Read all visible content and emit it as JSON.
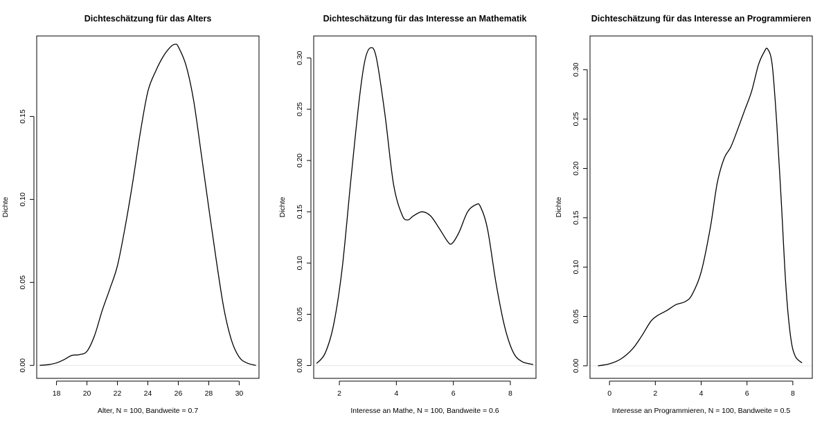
{
  "chart_data": [
    {
      "type": "line",
      "title": "Dichteschätzung für das Alters",
      "xlabel": "Alter, N = 100, Bandweite = 0.7",
      "ylabel": "Dichte",
      "xlim": [
        16.7,
        31.3
      ],
      "ylim": [
        -0.0078,
        0.1985
      ],
      "xticks": [
        18,
        20,
        22,
        24,
        26,
        28,
        30
      ],
      "yticks": [
        0.0,
        0.05,
        0.1,
        0.15
      ],
      "ytick_labels": [
        "0.00",
        "0.05",
        "0.10",
        "0.15"
      ],
      "grid": false,
      "series": [
        {
          "x": [
            16.9,
            17.5,
            18.0,
            18.5,
            19.0,
            19.5,
            20.0,
            20.5,
            21.0,
            21.5,
            22.0,
            22.5,
            23.0,
            23.5,
            24.0,
            24.5,
            25.0,
            25.5,
            25.8,
            26.0,
            26.5,
            27.0,
            27.5,
            28.0,
            28.5,
            29.0,
            29.5,
            30.0,
            30.5,
            31.1
          ],
          "y": [
            0.0,
            0.0005,
            0.0015,
            0.0035,
            0.006,
            0.0065,
            0.0085,
            0.018,
            0.033,
            0.046,
            0.06,
            0.083,
            0.11,
            0.14,
            0.165,
            0.177,
            0.186,
            0.192,
            0.1935,
            0.192,
            0.181,
            0.16,
            0.128,
            0.095,
            0.063,
            0.034,
            0.015,
            0.005,
            0.0015,
            0.0
          ]
        }
      ]
    },
    {
      "type": "line",
      "title": "Dichteschätzung für das Interesse an Mathematik",
      "xlabel": "Interesse an Mathe, N = 100, Bandweite = 0.6",
      "ylabel": "Dichte",
      "xlim": [
        1.1,
        8.9
      ],
      "ylim": [
        -0.0125,
        0.3215
      ],
      "xticks": [
        2,
        4,
        6,
        8
      ],
      "yticks": [
        0.0,
        0.05,
        0.1,
        0.15,
        0.2,
        0.25,
        0.3
      ],
      "ytick_labels": [
        "0.00",
        "0.05",
        "0.10",
        "0.15",
        "0.20",
        "0.25",
        "0.30"
      ],
      "grid": false,
      "series": [
        {
          "x": [
            1.2,
            1.5,
            1.8,
            2.1,
            2.4,
            2.7,
            2.9,
            3.1,
            3.3,
            3.6,
            3.9,
            4.2,
            4.4,
            4.6,
            4.9,
            5.2,
            5.5,
            5.8,
            5.95,
            6.2,
            6.5,
            6.8,
            6.95,
            7.2,
            7.5,
            7.8,
            8.1,
            8.4,
            8.8
          ],
          "y": [
            0.002,
            0.012,
            0.04,
            0.095,
            0.18,
            0.26,
            0.298,
            0.31,
            0.3,
            0.245,
            0.177,
            0.147,
            0.142,
            0.146,
            0.15,
            0.146,
            0.134,
            0.121,
            0.119,
            0.13,
            0.15,
            0.157,
            0.155,
            0.133,
            0.08,
            0.038,
            0.013,
            0.004,
            0.001
          ]
        }
      ]
    },
    {
      "type": "line",
      "title": "Dichteschätzung für das Interesse an Programmieren",
      "xlabel": "Interesse an Programmieren, N = 100, Bandweite = 0.5",
      "ylabel": "Dichte",
      "xlim": [
        -0.85,
        8.85
      ],
      "ylim": [
        -0.0127,
        0.3342
      ],
      "xticks": [
        0,
        2,
        4,
        6,
        8
      ],
      "yticks": [
        0.0,
        0.05,
        0.1,
        0.15,
        0.2,
        0.25,
        0.3
      ],
      "ytick_labels": [
        "0.00",
        "0.05",
        "0.10",
        "0.15",
        "0.20",
        "0.25",
        "0.30"
      ],
      "grid": false,
      "series": [
        {
          "x": [
            -0.5,
            0.0,
            0.5,
            1.0,
            1.4,
            1.8,
            2.1,
            2.5,
            2.9,
            3.3,
            3.6,
            4.0,
            4.4,
            4.7,
            5.0,
            5.3,
            5.6,
            5.9,
            6.2,
            6.5,
            6.75,
            6.9,
            7.1,
            7.3,
            7.5,
            7.7,
            7.9,
            8.1,
            8.4
          ],
          "y": [
            0.0,
            0.002,
            0.007,
            0.017,
            0.03,
            0.045,
            0.051,
            0.056,
            0.062,
            0.065,
            0.072,
            0.095,
            0.14,
            0.185,
            0.21,
            0.222,
            0.24,
            0.259,
            0.278,
            0.305,
            0.318,
            0.321,
            0.305,
            0.245,
            0.165,
            0.08,
            0.03,
            0.01,
            0.003
          ]
        }
      ]
    }
  ]
}
